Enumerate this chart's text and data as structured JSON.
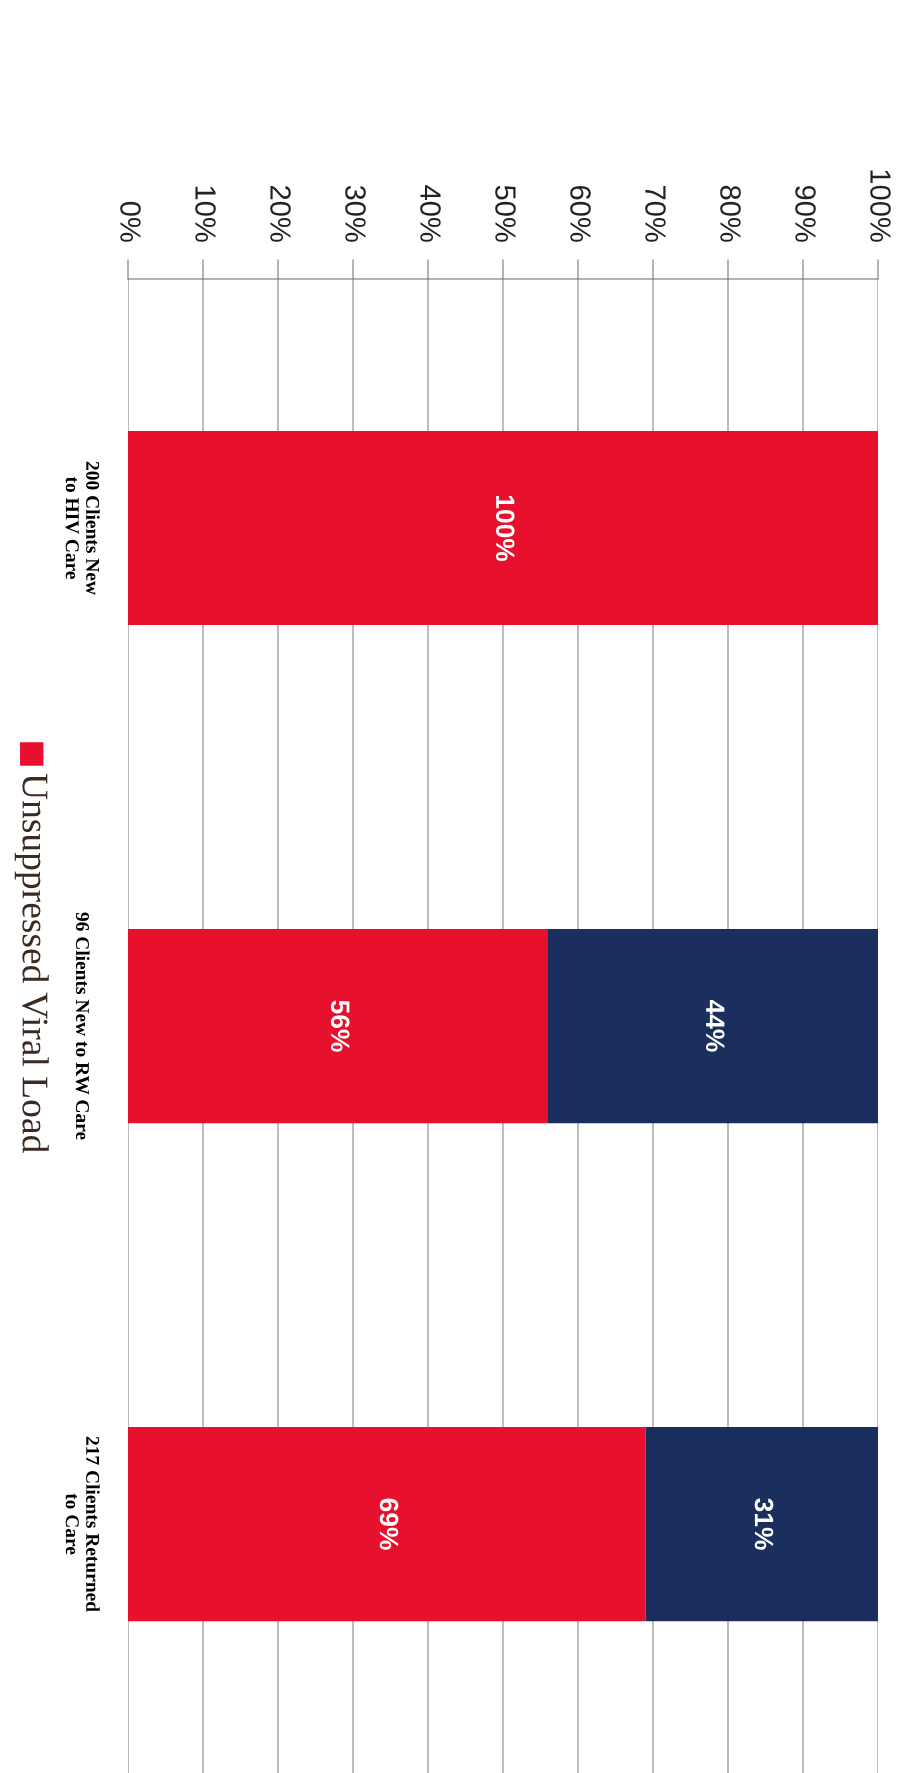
{
  "chart_data": {
    "type": "bar",
    "orientation": "horizontal",
    "stacked": true,
    "categories": [
      "200 Clients New\nto HIV Care",
      "96 Clients New to RW Care",
      "217 Clients Returned\nto Care"
    ],
    "series": [
      {
        "name": "Unsuppressed Viral Load",
        "color": "#e8112d",
        "values": [
          100,
          56,
          69
        ],
        "value_labels": [
          "100%",
          "56%",
          "69%"
        ]
      },
      {
        "color": "#1b2f5e",
        "values": [
          null,
          44,
          31
        ],
        "value_labels": [
          null,
          "44%",
          "31%"
        ]
      }
    ],
    "xlim": [
      0,
      100
    ],
    "xticks": [
      {
        "value": 0,
        "label": "0%"
      },
      {
        "value": 10,
        "label": "10%"
      },
      {
        "value": 20,
        "label": "20%"
      },
      {
        "value": 30,
        "label": "30%"
      },
      {
        "value": 40,
        "label": "40%"
      },
      {
        "value": 50,
        "label": "50%"
      },
      {
        "value": 60,
        "label": "60%"
      },
      {
        "value": 70,
        "label": "70%"
      },
      {
        "value": 80,
        "label": "80%"
      },
      {
        "value": 90,
        "label": "90%"
      },
      {
        "value": 100,
        "label": "100%"
      }
    ],
    "grid": "x",
    "legend": "left"
  }
}
